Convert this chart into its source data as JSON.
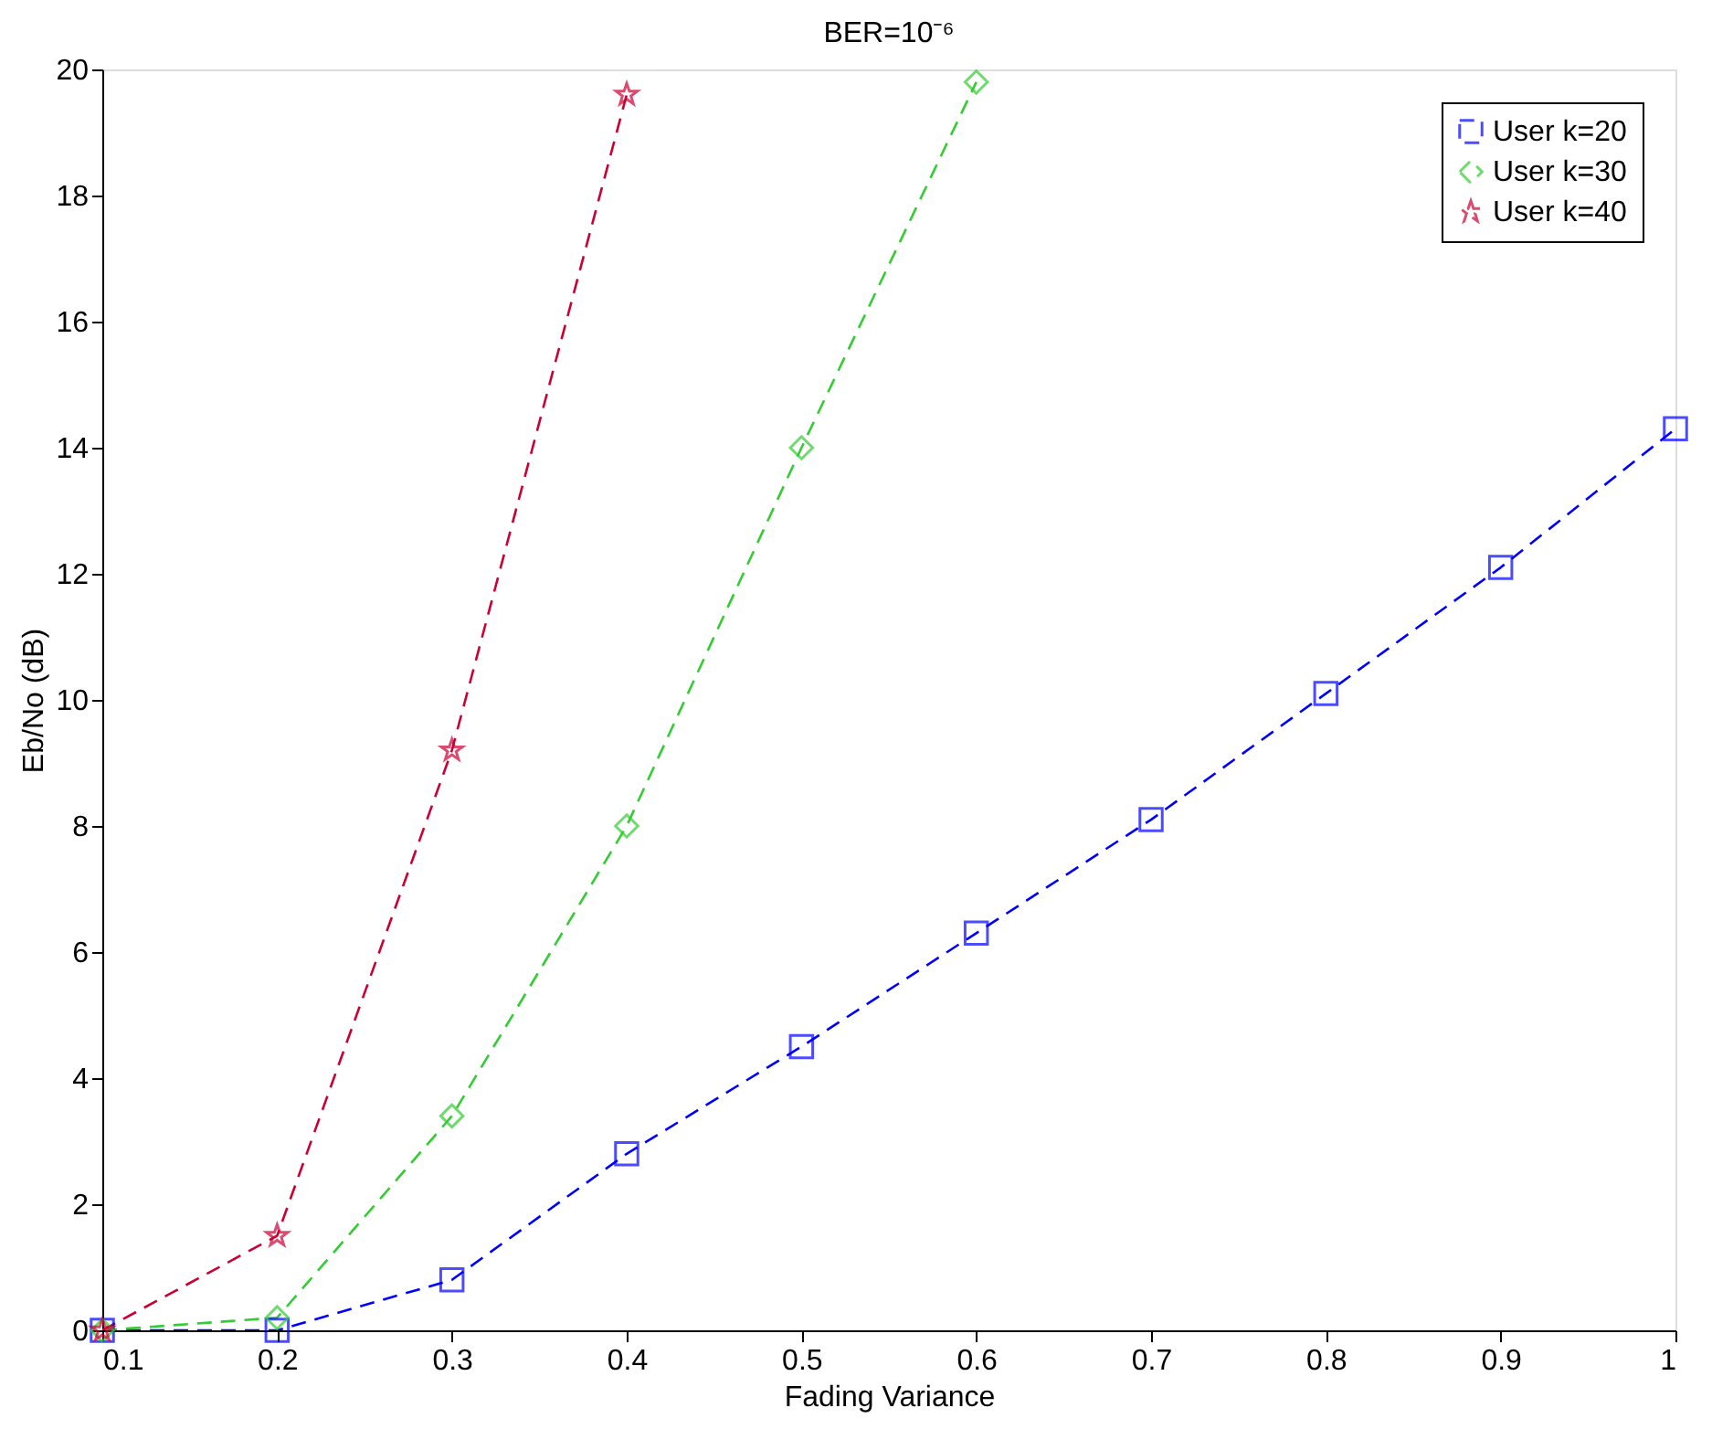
{
  "chart_data": {
    "type": "line",
    "title": "BER=10⁻⁶",
    "xlabel": "Fading Variance",
    "ylabel": "Eb/No (dB)",
    "xlim": [
      0.1,
      1
    ],
    "xticks": [
      0.1,
      0.2,
      0.3,
      0.4,
      0.5,
      0.6,
      0.7,
      0.8,
      0.9,
      1
    ],
    "ylim": [
      0,
      20
    ],
    "yticks": [
      0,
      2,
      4,
      6,
      8,
      10,
      12,
      14,
      16,
      18,
      20
    ],
    "grid": false,
    "legend": "top right",
    "line_style": "dashed",
    "series": [
      {
        "name": "User k=20",
        "color": "#0000ff",
        "marker": "square",
        "x": [
          0.1,
          0.2,
          0.3,
          0.4,
          0.5,
          0.6,
          0.7,
          0.8,
          0.9,
          1.0
        ],
        "values": [
          0,
          0,
          0.8,
          2.8,
          4.5,
          6.3,
          8.1,
          10.1,
          12.1,
          14.3
        ]
      },
      {
        "name": "User k=30",
        "color": "#33cc33",
        "marker": "diamond",
        "x": [
          0.1,
          0.2,
          0.3,
          0.4,
          0.5,
          0.6
        ],
        "values": [
          0,
          0.2,
          3.4,
          8.0,
          14.0,
          19.8
        ]
      },
      {
        "name": "User k=40",
        "color": "#cc0033",
        "marker": "star",
        "x": [
          0.1,
          0.2,
          0.3,
          0.4
        ],
        "values": [
          0,
          1.5,
          9.2,
          19.6
        ]
      }
    ]
  }
}
